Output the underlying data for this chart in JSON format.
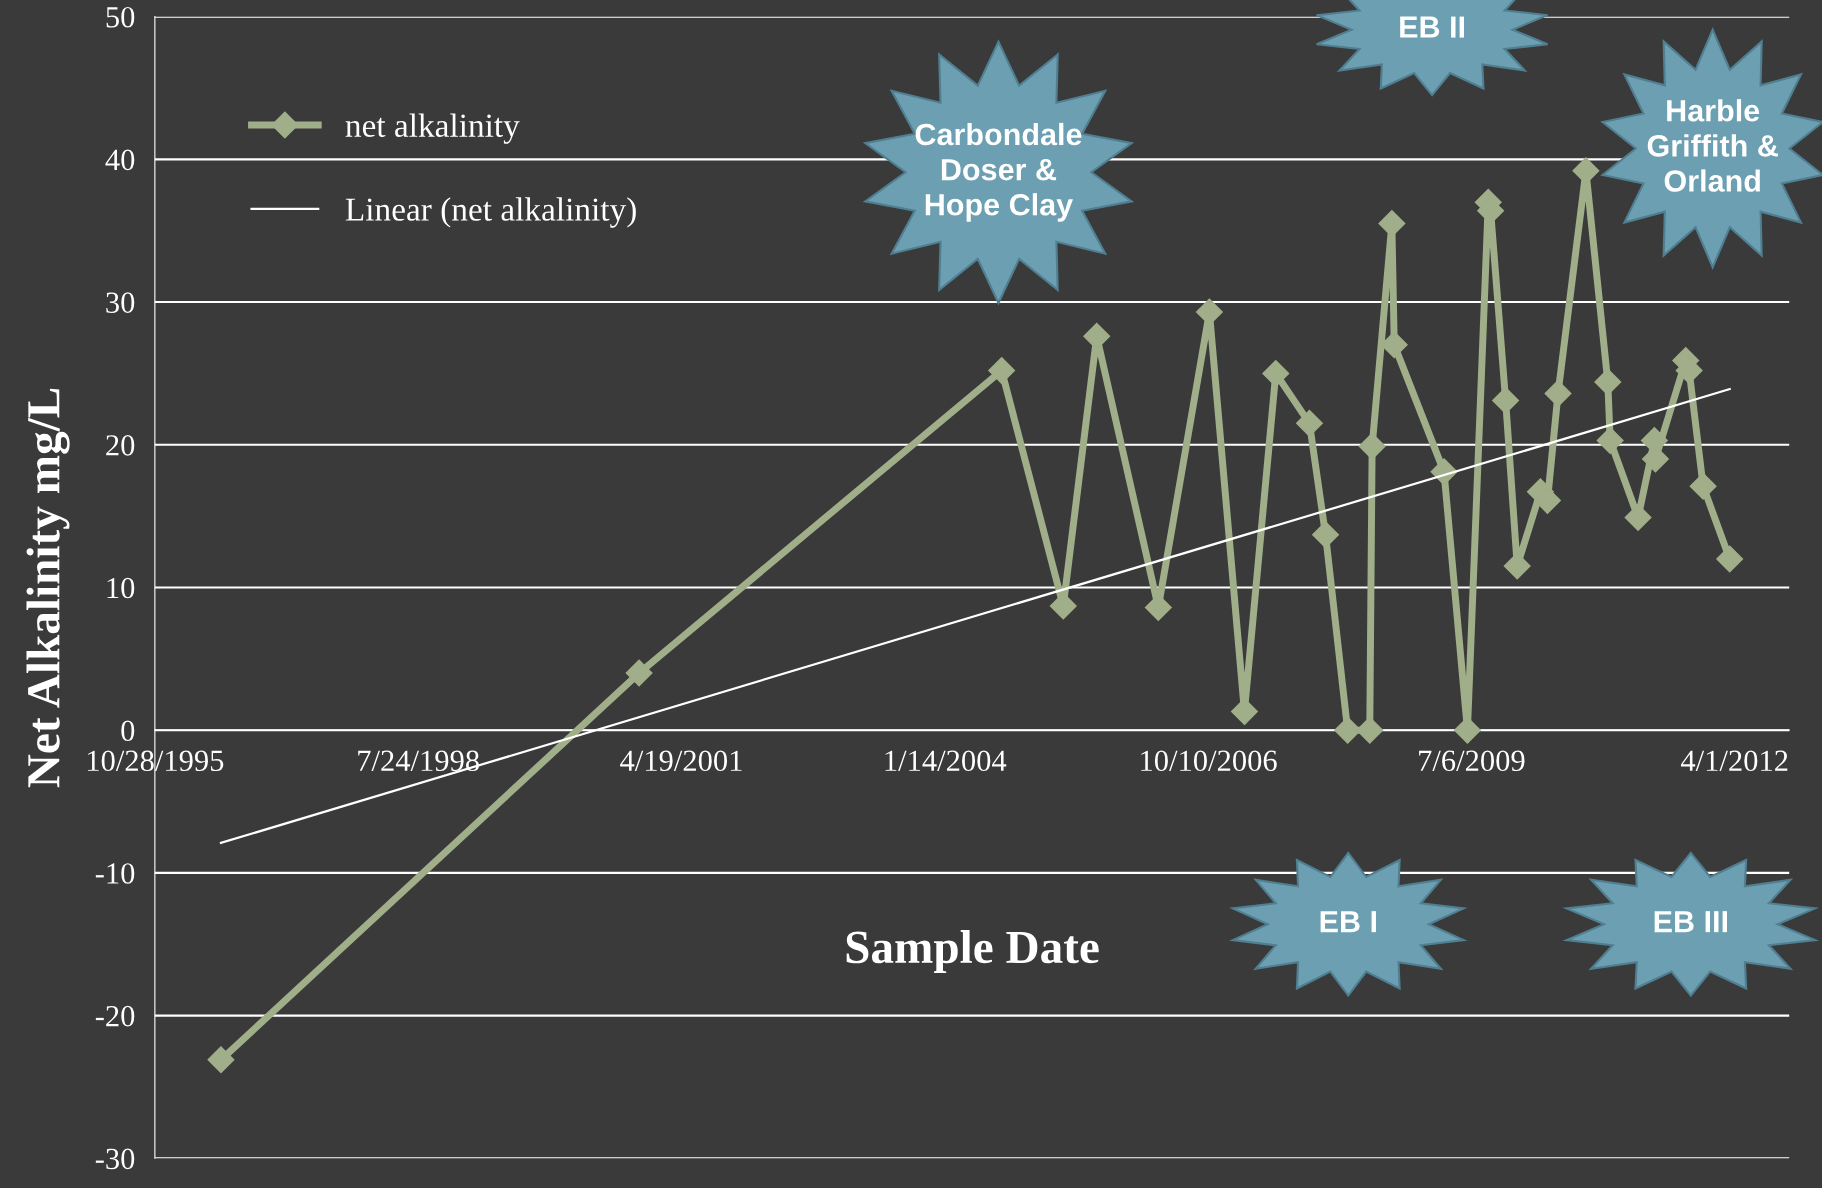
{
  "chart_data": {
    "type": "line",
    "xlabel": "Sample Date",
    "ylabel": "Net Alkalinity mg/L",
    "x": [
      "1996-07-05",
      "2000-11-09",
      "2004-08-17",
      "2005-04-08",
      "2005-08-13",
      "2006-04-04",
      "2006-10-15",
      "2007-02-25",
      "2007-06-24",
      "2007-10-30",
      "2007-12-30",
      "2008-03-23",
      "2008-06-15",
      "2008-06-24",
      "2008-09-07",
      "2008-09-16",
      "2009-03-24",
      "2009-06-21",
      "2009-09-08",
      "2009-09-17",
      "2009-11-13",
      "2009-12-27",
      "2010-03-25",
      "2010-04-21",
      "2010-05-31",
      "2010-09-14",
      "2010-12-06",
      "2010-12-15",
      "2011-03-31",
      "2011-06-01",
      "2011-06-05",
      "2011-09-28",
      "2011-10-11",
      "2011-12-03",
      "2012-03-13"
    ],
    "series": [
      {
        "name": "net alkalinity",
        "color": "#a0ae89",
        "marker": "diamond",
        "values": [
          -23.1,
          4.0,
          25.2,
          8.7,
          27.6,
          8.6,
          29.3,
          1.3,
          25.0,
          21.5,
          13.7,
          0,
          0,
          19.9,
          35.5,
          27.0,
          18.1,
          0,
          37.0,
          36.4,
          23.1,
          11.5,
          16.7,
          16.1,
          23.6,
          39.2,
          24.4,
          20.3,
          14.9,
          20.3,
          19.0,
          25.9,
          25.2,
          17.1,
          12.0
        ]
      },
      {
        "name": "Linear (net alkalinity)",
        "color": "#ffffff",
        "marker": "none",
        "x": [
          "1996-07-05",
          "2012-03-13"
        ],
        "values": [
          -7.9,
          23.9
        ]
      }
    ],
    "xlim": [
      "1995-10-28",
      "2012-10-25"
    ],
    "xticks": [
      {
        "value": "1995-10-28",
        "label": "10/28/1995"
      },
      {
        "value": "1998-07-24",
        "label": "7/24/1998"
      },
      {
        "value": "2001-04-19",
        "label": "4/19/2001"
      },
      {
        "value": "2004-01-14",
        "label": "1/14/2004"
      },
      {
        "value": "2006-10-10",
        "label": "10/10/2006"
      },
      {
        "value": "2009-07-06",
        "label": "7/6/2009"
      },
      {
        "value": "2012-04-01",
        "label": "4/1/2012"
      }
    ],
    "ylim": [
      -30,
      50
    ],
    "yticks": [
      -30,
      -20,
      -10,
      0,
      10,
      20,
      30,
      40,
      50
    ],
    "grid": "y",
    "legend": "top left",
    "line_style": "solid",
    "annotations": [
      "Carbondale\nDoser &\nHope Clay",
      "EB II",
      "Harble\nGriffith &\nOrland",
      "EB I",
      "EB III"
    ]
  }
}
